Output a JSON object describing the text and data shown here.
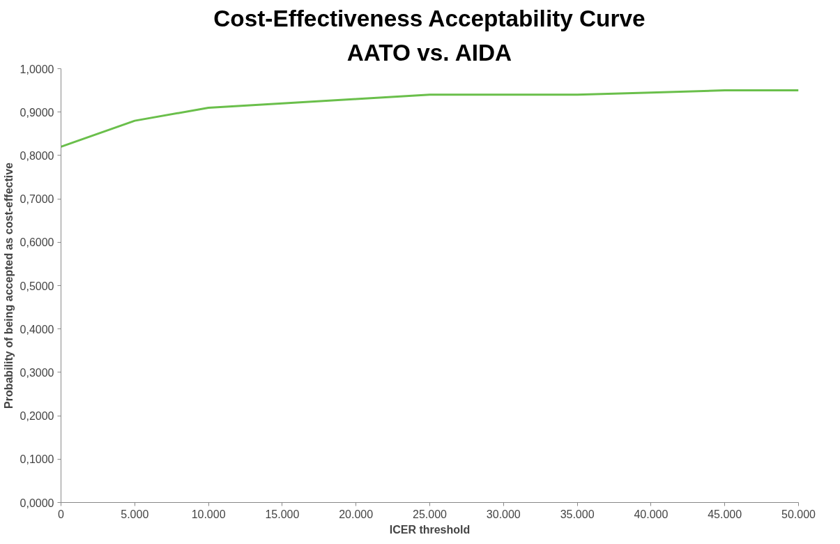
{
  "chart_data": {
    "type": "line",
    "title": "Cost-Effectiveness Acceptability Curve",
    "subtitle": "AATO vs. AIDA",
    "xlabel": "ICER threshold",
    "ylabel": "Probability of being accepted as cost-effective",
    "categories": [
      "0",
      "5.000",
      "10.000",
      "15.000",
      "20.000",
      "25.000",
      "30.000",
      "35.000",
      "40.000",
      "45.000",
      "50.000"
    ],
    "series": [
      {
        "color": "#6abf4b",
        "values": [
          0.82,
          0.88,
          0.91,
          0.92,
          0.93,
          0.94,
          0.94,
          0.94,
          0.945,
          0.95,
          0.95
        ]
      }
    ],
    "ylim": [
      0,
      1
    ],
    "yticks": [
      {
        "value": 0,
        "label": "0,0000"
      },
      {
        "value": 0.1,
        "label": "0,1000"
      },
      {
        "value": 0.2,
        "label": "0,2000"
      },
      {
        "value": 0.3,
        "label": "0,3000"
      },
      {
        "value": 0.4,
        "label": "0,4000"
      },
      {
        "value": 0.5,
        "label": "0,5000"
      },
      {
        "value": 0.6,
        "label": "0,6000"
      },
      {
        "value": 0.7,
        "label": "0,7000"
      },
      {
        "value": 0.8,
        "label": "0,8000"
      },
      {
        "value": 0.9,
        "label": "0,9000"
      },
      {
        "value": 1,
        "label": "1,0000"
      }
    ],
    "grid": false,
    "marker": "none",
    "line_style": "solid"
  }
}
